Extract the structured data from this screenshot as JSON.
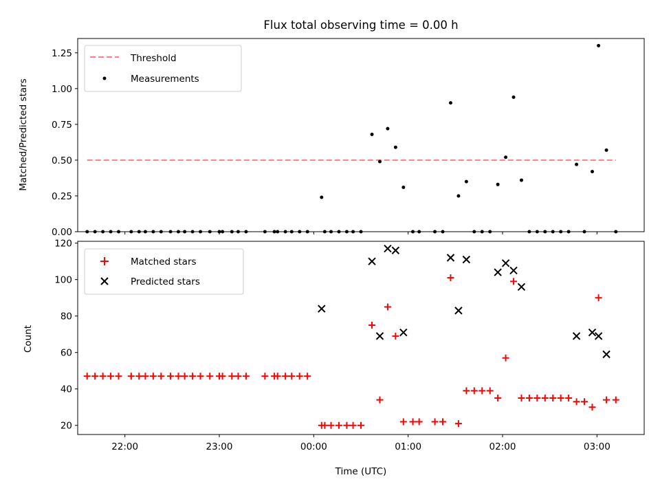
{
  "chart_data": [
    {
      "type": "scatter",
      "title": "Flux total observing time = 0.00 h",
      "ylabel": "Matched/Predicted stars",
      "xlabel": "",
      "xlim": [
        "21:30",
        "03:30"
      ],
      "ylim": [
        0,
        1.35
      ],
      "yticks": [
        "0.00",
        "0.25",
        "0.50",
        "0.75",
        "1.00",
        "1.25"
      ],
      "legend_position": "upper-left",
      "series": [
        {
          "name": "Threshold",
          "kind": "line",
          "style": "dashed",
          "color": "#ff7f7f",
          "points": [
            {
              "x": "21:36",
              "y": 0.5
            },
            {
              "x": "03:12",
              "y": 0.5
            }
          ]
        },
        {
          "name": "Measurements",
          "kind": "scatter",
          "marker": "dot",
          "color": "#000000",
          "points": [
            {
              "x": "21:36",
              "y": 0
            },
            {
              "x": "21:41",
              "y": 0
            },
            {
              "x": "21:46",
              "y": 0
            },
            {
              "x": "21:51",
              "y": 0
            },
            {
              "x": "21:56",
              "y": 0
            },
            {
              "x": "22:04",
              "y": 0
            },
            {
              "x": "22:09",
              "y": 0
            },
            {
              "x": "22:13",
              "y": 0
            },
            {
              "x": "22:18",
              "y": 0
            },
            {
              "x": "22:23",
              "y": 0
            },
            {
              "x": "22:29",
              "y": 0
            },
            {
              "x": "22:34",
              "y": 0
            },
            {
              "x": "22:38",
              "y": 0
            },
            {
              "x": "22:43",
              "y": 0
            },
            {
              "x": "22:48",
              "y": 0
            },
            {
              "x": "22:54",
              "y": 0
            },
            {
              "x": "23:00",
              "y": 0
            },
            {
              "x": "23:02",
              "y": 0
            },
            {
              "x": "23:08",
              "y": 0
            },
            {
              "x": "23:12",
              "y": 0
            },
            {
              "x": "23:17",
              "y": 0
            },
            {
              "x": "23:29",
              "y": 0
            },
            {
              "x": "23:35",
              "y": 0
            },
            {
              "x": "23:37",
              "y": 0
            },
            {
              "x": "23:42",
              "y": 0
            },
            {
              "x": "23:46",
              "y": 0
            },
            {
              "x": "23:51",
              "y": 0
            },
            {
              "x": "23:56",
              "y": 0
            },
            {
              "x": "00:05",
              "y": 0.24
            },
            {
              "x": "00:07",
              "y": 0
            },
            {
              "x": "00:11",
              "y": 0
            },
            {
              "x": "00:16",
              "y": 0
            },
            {
              "x": "00:21",
              "y": 0
            },
            {
              "x": "00:25",
              "y": 0
            },
            {
              "x": "00:30",
              "y": 0
            },
            {
              "x": "00:37",
              "y": 0.68
            },
            {
              "x": "00:42",
              "y": 0.49
            },
            {
              "x": "00:47",
              "y": 0.72
            },
            {
              "x": "00:52",
              "y": 0.59
            },
            {
              "x": "00:57",
              "y": 0.31
            },
            {
              "x": "01:03",
              "y": 0
            },
            {
              "x": "01:07",
              "y": 0
            },
            {
              "x": "01:17",
              "y": 0
            },
            {
              "x": "01:22",
              "y": 0
            },
            {
              "x": "01:27",
              "y": 0.9
            },
            {
              "x": "01:32",
              "y": 0.25
            },
            {
              "x": "01:37",
              "y": 0.35
            },
            {
              "x": "01:42",
              "y": 0
            },
            {
              "x": "01:47",
              "y": 0
            },
            {
              "x": "01:52",
              "y": 0
            },
            {
              "x": "01:57",
              "y": 0.33
            },
            {
              "x": "02:02",
              "y": 0.52
            },
            {
              "x": "02:07",
              "y": 0.94
            },
            {
              "x": "02:12",
              "y": 0.36
            },
            {
              "x": "02:17",
              "y": 0
            },
            {
              "x": "02:22",
              "y": 0
            },
            {
              "x": "02:27",
              "y": 0
            },
            {
              "x": "02:32",
              "y": 0
            },
            {
              "x": "02:37",
              "y": 0
            },
            {
              "x": "02:42",
              "y": 0
            },
            {
              "x": "02:47",
              "y": 0.47
            },
            {
              "x": "02:52",
              "y": 0
            },
            {
              "x": "02:57",
              "y": 0.42
            },
            {
              "x": "03:01",
              "y": 1.3
            },
            {
              "x": "03:06",
              "y": 0.57
            },
            {
              "x": "03:12",
              "y": 0
            }
          ]
        }
      ]
    },
    {
      "type": "scatter",
      "title": "",
      "ylabel": "Count",
      "xlabel": "Time (UTC)",
      "xlim": [
        "21:30",
        "03:30"
      ],
      "ylim": [
        15,
        121
      ],
      "yticks": [
        "20",
        "40",
        "60",
        "80",
        "100",
        "120"
      ],
      "xticks": [
        "22:00",
        "23:00",
        "00:00",
        "01:00",
        "02:00",
        "03:00"
      ],
      "legend_position": "upper-left",
      "series": [
        {
          "name": "Matched stars",
          "kind": "scatter",
          "marker": "plus",
          "color": "#ff0000",
          "points": [
            {
              "x": "21:36",
              "y": 47
            },
            {
              "x": "21:41",
              "y": 47
            },
            {
              "x": "21:46",
              "y": 47
            },
            {
              "x": "21:51",
              "y": 47
            },
            {
              "x": "21:56",
              "y": 47
            },
            {
              "x": "22:04",
              "y": 47
            },
            {
              "x": "22:09",
              "y": 47
            },
            {
              "x": "22:13",
              "y": 47
            },
            {
              "x": "22:18",
              "y": 47
            },
            {
              "x": "22:23",
              "y": 47
            },
            {
              "x": "22:29",
              "y": 47
            },
            {
              "x": "22:34",
              "y": 47
            },
            {
              "x": "22:38",
              "y": 47
            },
            {
              "x": "22:43",
              "y": 47
            },
            {
              "x": "22:48",
              "y": 47
            },
            {
              "x": "22:54",
              "y": 47
            },
            {
              "x": "23:00",
              "y": 47
            },
            {
              "x": "23:02",
              "y": 47
            },
            {
              "x": "23:08",
              "y": 47
            },
            {
              "x": "23:12",
              "y": 47
            },
            {
              "x": "23:17",
              "y": 47
            },
            {
              "x": "23:29",
              "y": 47
            },
            {
              "x": "23:35",
              "y": 47
            },
            {
              "x": "23:37",
              "y": 47
            },
            {
              "x": "23:42",
              "y": 47
            },
            {
              "x": "23:46",
              "y": 47
            },
            {
              "x": "23:51",
              "y": 47
            },
            {
              "x": "23:56",
              "y": 47
            },
            {
              "x": "00:05",
              "y": 20
            },
            {
              "x": "00:07",
              "y": 20
            },
            {
              "x": "00:11",
              "y": 20
            },
            {
              "x": "00:16",
              "y": 20
            },
            {
              "x": "00:21",
              "y": 20
            },
            {
              "x": "00:25",
              "y": 20
            },
            {
              "x": "00:30",
              "y": 20
            },
            {
              "x": "00:37",
              "y": 75
            },
            {
              "x": "00:42",
              "y": 34
            },
            {
              "x": "00:47",
              "y": 85
            },
            {
              "x": "00:52",
              "y": 69
            },
            {
              "x": "00:57",
              "y": 22
            },
            {
              "x": "01:03",
              "y": 22
            },
            {
              "x": "01:07",
              "y": 22
            },
            {
              "x": "01:17",
              "y": 22
            },
            {
              "x": "01:22",
              "y": 22
            },
            {
              "x": "01:27",
              "y": 101
            },
            {
              "x": "01:32",
              "y": 21
            },
            {
              "x": "01:37",
              "y": 39
            },
            {
              "x": "01:42",
              "y": 39
            },
            {
              "x": "01:47",
              "y": 39
            },
            {
              "x": "01:52",
              "y": 39
            },
            {
              "x": "01:57",
              "y": 35
            },
            {
              "x": "02:02",
              "y": 57
            },
            {
              "x": "02:07",
              "y": 99
            },
            {
              "x": "02:12",
              "y": 35
            },
            {
              "x": "02:17",
              "y": 35
            },
            {
              "x": "02:22",
              "y": 35
            },
            {
              "x": "02:27",
              "y": 35
            },
            {
              "x": "02:32",
              "y": 35
            },
            {
              "x": "02:37",
              "y": 35
            },
            {
              "x": "02:42",
              "y": 35
            },
            {
              "x": "02:47",
              "y": 33
            },
            {
              "x": "02:52",
              "y": 33
            },
            {
              "x": "02:57",
              "y": 30
            },
            {
              "x": "03:01",
              "y": 90
            },
            {
              "x": "03:06",
              "y": 34
            },
            {
              "x": "03:12",
              "y": 34
            }
          ]
        },
        {
          "name": "Predicted stars",
          "kind": "scatter",
          "marker": "x",
          "color": "#000000",
          "points": [
            {
              "x": "00:05",
              "y": 84
            },
            {
              "x": "00:37",
              "y": 110
            },
            {
              "x": "00:42",
              "y": 69
            },
            {
              "x": "00:47",
              "y": 117
            },
            {
              "x": "00:52",
              "y": 116
            },
            {
              "x": "00:57",
              "y": 71
            },
            {
              "x": "01:27",
              "y": 112
            },
            {
              "x": "01:32",
              "y": 83
            },
            {
              "x": "01:37",
              "y": 111
            },
            {
              "x": "01:57",
              "y": 104
            },
            {
              "x": "02:02",
              "y": 109
            },
            {
              "x": "02:07",
              "y": 105
            },
            {
              "x": "02:12",
              "y": 96
            },
            {
              "x": "02:47",
              "y": 69
            },
            {
              "x": "02:57",
              "y": 71
            },
            {
              "x": "03:01",
              "y": 69
            },
            {
              "x": "03:06",
              "y": 59
            }
          ]
        }
      ]
    }
  ]
}
